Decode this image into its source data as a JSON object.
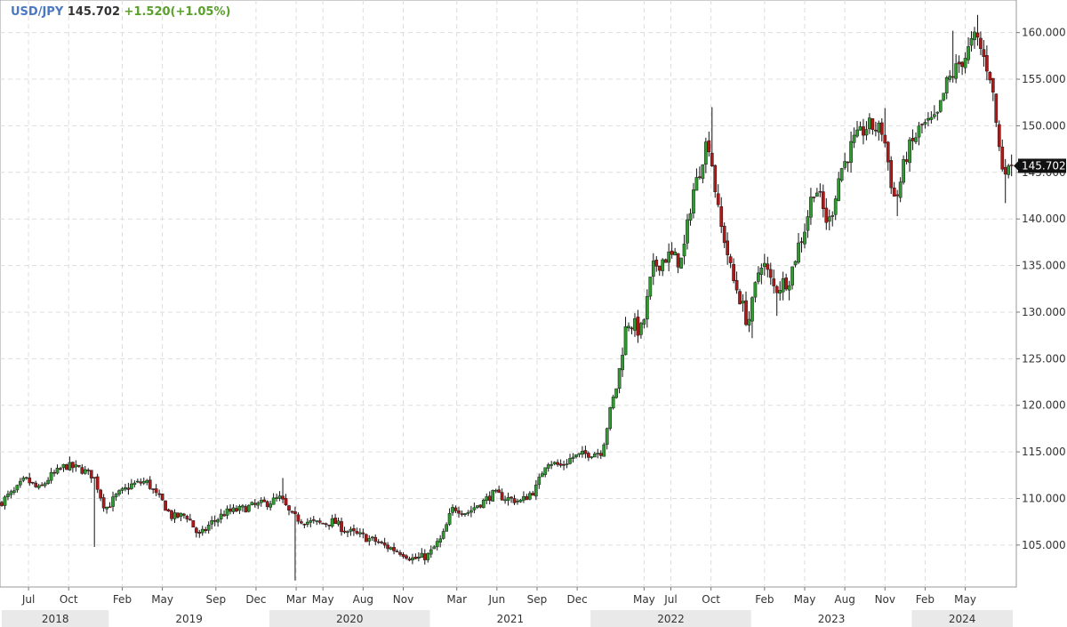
{
  "header": {
    "symbol": "USD/JPY",
    "price": "145.702",
    "change": "+1.520(+1.05%)"
  },
  "colors": {
    "up": "#2f9a2f",
    "down": "#b01818",
    "wick": "#111111",
    "grid": "#dddddd",
    "symbol": "#4a78c2",
    "change": "#5aa02c",
    "last_label_bg": "#111111",
    "year_band": "#e9e9e9"
  },
  "chart_data": {
    "type": "candlestick",
    "title": "",
    "xlabel": "",
    "ylabel": "",
    "ylim": [
      100.5,
      163.5
    ],
    "y_ticks": [
      "105.000",
      "110.000",
      "115.000",
      "120.000",
      "125.000",
      "130.000",
      "135.000",
      "140.000",
      "145.000",
      "150.000",
      "155.000",
      "160.000"
    ],
    "month_ticks": [
      "Jul",
      "Oct",
      "Feb",
      "May",
      "Sep",
      "Dec",
      "Mar",
      "May",
      "Aug",
      "Nov",
      "Mar",
      "Jun",
      "Sep",
      "Dec",
      "May",
      "Jul",
      "Oct",
      "Feb",
      "May",
      "Aug",
      "Nov",
      "Feb",
      "May"
    ],
    "month_tick_dates": [
      "2018-07",
      "2018-10",
      "2019-02",
      "2019-05",
      "2019-09",
      "2019-12",
      "2020-03",
      "2020-05",
      "2020-08",
      "2020-11",
      "2021-03",
      "2021-06",
      "2021-09",
      "2021-12",
      "2022-05",
      "2022-07",
      "2022-10",
      "2023-02",
      "2023-05",
      "2023-08",
      "2023-11",
      "2024-02",
      "2024-05"
    ],
    "years": [
      "2018",
      "2019",
      "2020",
      "2021",
      "2022",
      "2023",
      "2024"
    ],
    "last_price_label": "145.702",
    "last_price": 145.702,
    "grid": true,
    "candle_interval": "weekly",
    "start_date": "2018-05",
    "end_date": "2024-08",
    "anchors": [
      [
        "2018-05",
        109.5
      ],
      [
        "2018-06",
        110.5
      ],
      [
        "2018-07",
        112.0
      ],
      [
        "2018-08",
        111.0
      ],
      [
        "2018-09",
        112.5
      ],
      [
        "2018-10",
        113.5
      ],
      [
        "2018-11",
        113.2
      ],
      [
        "2018-12",
        112.5
      ],
      [
        "2019-01",
        109.0
      ],
      [
        "2019-02",
        110.5
      ],
      [
        "2019-03",
        111.5
      ],
      [
        "2019-04",
        111.8
      ],
      [
        "2019-05",
        110.0
      ],
      [
        "2019-06",
        108.0
      ],
      [
        "2019-07",
        108.2
      ],
      [
        "2019-08",
        106.0
      ],
      [
        "2019-09",
        107.5
      ],
      [
        "2019-10",
        108.5
      ],
      [
        "2019-11",
        108.8
      ],
      [
        "2019-12",
        109.2
      ],
      [
        "2020-01",
        109.5
      ],
      [
        "2020-02",
        110.0
      ],
      [
        "2020-03",
        108.0
      ],
      [
        "2020-04",
        107.5
      ],
      [
        "2020-05",
        107.3
      ],
      [
        "2020-06",
        107.5
      ],
      [
        "2020-07",
        106.5
      ],
      [
        "2020-08",
        106.0
      ],
      [
        "2020-09",
        105.5
      ],
      [
        "2020-10",
        104.8
      ],
      [
        "2020-11",
        104.3
      ],
      [
        "2020-12",
        103.5
      ],
      [
        "2021-01",
        103.8
      ],
      [
        "2021-02",
        105.5
      ],
      [
        "2021-03",
        109.0
      ],
      [
        "2021-04",
        108.5
      ],
      [
        "2021-05",
        109.5
      ],
      [
        "2021-06",
        110.5
      ],
      [
        "2021-07",
        110.0
      ],
      [
        "2021-08",
        109.7
      ],
      [
        "2021-09",
        110.8
      ],
      [
        "2021-10",
        114.0
      ],
      [
        "2021-11",
        113.5
      ],
      [
        "2021-12",
        114.5
      ],
      [
        "2022-01",
        114.8
      ],
      [
        "2022-02",
        115.0
      ],
      [
        "2022-03",
        121.0
      ],
      [
        "2022-04",
        129.0
      ],
      [
        "2022-05",
        128.0
      ],
      [
        "2022-06",
        135.0
      ],
      [
        "2022-07",
        136.0
      ],
      [
        "2022-08",
        135.5
      ],
      [
        "2022-09",
        143.5
      ],
      [
        "2022-10",
        148.5
      ],
      [
        "2022-11",
        139.0
      ],
      [
        "2022-12",
        133.0
      ],
      [
        "2023-01",
        129.0
      ],
      [
        "2023-02",
        135.5
      ],
      [
        "2023-03",
        132.5
      ],
      [
        "2023-04",
        133.5
      ],
      [
        "2023-05",
        138.0
      ],
      [
        "2023-06",
        143.5
      ],
      [
        "2023-07",
        139.5
      ],
      [
        "2023-08",
        145.5
      ],
      [
        "2023-09",
        148.5
      ],
      [
        "2023-10",
        150.0
      ],
      [
        "2023-11",
        149.5
      ],
      [
        "2023-12",
        142.0
      ],
      [
        "2024-01",
        147.5
      ],
      [
        "2024-02",
        150.0
      ],
      [
        "2024-03",
        150.5
      ],
      [
        "2024-04",
        155.0
      ],
      [
        "2024-05",
        157.0
      ],
      [
        "2024-06",
        159.5
      ],
      [
        "2024-07",
        156.0
      ],
      [
        "2024-08",
        145.702
      ]
    ],
    "lows": [
      [
        "2018-12",
        104.8
      ],
      [
        "2020-03",
        101.2
      ],
      [
        "2022-10",
        146.0
      ],
      [
        "2023-01",
        127.2
      ],
      [
        "2023-03",
        129.6
      ],
      [
        "2023-12",
        140.3
      ],
      [
        "2024-08",
        141.7
      ]
    ],
    "highs": [
      [
        "2018-10",
        114.5
      ],
      [
        "2019-04",
        112.4
      ],
      [
        "2020-02",
        112.2
      ],
      [
        "2022-10",
        152.0
      ],
      [
        "2023-11",
        151.9
      ],
      [
        "2024-04",
        160.2
      ],
      [
        "2024-06",
        161.9
      ]
    ]
  }
}
